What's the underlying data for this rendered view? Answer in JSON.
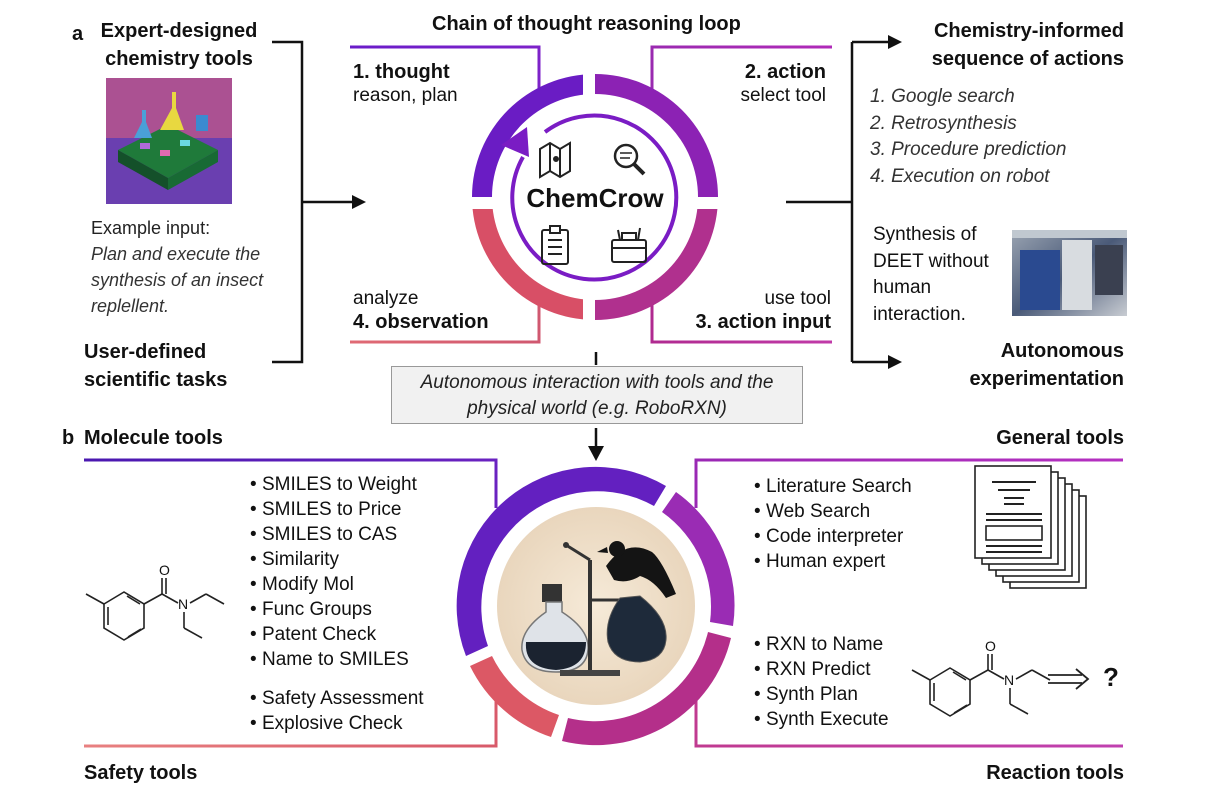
{
  "panel_a": {
    "letter": "a",
    "title": "Chain of thought reasoning loop",
    "center_label": "ChemCrow",
    "left": {
      "top_title": "Expert-designed chemistry tools",
      "example_label": "Example input:",
      "example_text": "Plan and execute the synthesis of an insect replellent.",
      "bottom_title": "User-defined scientific tasks"
    },
    "quadrants": {
      "thought_title": "1. thought",
      "thought_sub": "reason, plan",
      "action_title": "2. action",
      "action_sub": "select tool",
      "action_input_title": "3. action input",
      "action_input_sub": "use tool",
      "observation_title": "4. observation",
      "observation_sub": "analyze"
    },
    "right": {
      "top_title": "Chemistry-informed sequence of actions",
      "actions": [
        "1. Google search",
        "2. Retrosynthesis",
        "3. Procedure prediction",
        "4. Execution on robot"
      ],
      "synthesis_text": "Synthesis of DEET without human interaction.",
      "bottom_title": "Autonomous experimentation"
    },
    "interaction_box": "Autonomous interaction with tools and the physical world (e.g. RoboRXN)"
  },
  "panel_b": {
    "letter": "b",
    "molecule_tools": {
      "title": "Molecule tools",
      "items": [
        "SMILES to Weight",
        "SMILES to Price",
        "SMILES to CAS",
        "Similarity",
        "Modify Mol",
        "Func Groups",
        "Patent Check",
        "Name to SMILES"
      ]
    },
    "safety_tools": {
      "title": "Safety tools",
      "items": [
        "Safety Assessment",
        "Explosive Check"
      ]
    },
    "general_tools": {
      "title": "General tools",
      "items": [
        "Literature Search",
        "Web Search",
        "Code interpreter",
        "Human expert"
      ]
    },
    "reaction_tools": {
      "title": "Reaction tools",
      "items": [
        "RXN to Name",
        "RXN Predict",
        "Synth Plan",
        "Synth Execute"
      ]
    },
    "molecule_atoms": {
      "o": "O",
      "n": "N"
    },
    "reaction_question": "?"
  },
  "colors": {
    "purple_dark": "#5b18b8",
    "purple_mid": "#8a2be2",
    "magenta": "#a0228c",
    "pink": "#c24a6a",
    "coral": "#e0595e"
  }
}
